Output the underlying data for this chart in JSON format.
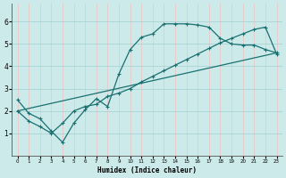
{
  "xlabel": "Humidex (Indice chaleur)",
  "bg_color": "#cceaea",
  "grid_color_v": "#e8c8c8",
  "grid_color_h": "#aad4d4",
  "line_color": "#1a7070",
  "xlim": [
    -0.5,
    23.5
  ],
  "ylim": [
    0,
    6.8
  ],
  "xticks": [
    0,
    1,
    2,
    3,
    4,
    5,
    6,
    7,
    8,
    9,
    10,
    11,
    12,
    13,
    14,
    15,
    16,
    17,
    18,
    19,
    20,
    21,
    22,
    23
  ],
  "yticks": [
    1,
    2,
    3,
    4,
    5,
    6
  ],
  "line1_x": [
    0,
    1,
    2,
    3,
    4,
    5,
    6,
    7,
    8,
    9,
    10,
    11,
    12,
    13,
    14,
    15,
    16,
    17,
    18,
    19,
    20,
    21,
    22,
    23
  ],
  "line1_y": [
    2.5,
    1.9,
    1.65,
    1.1,
    0.6,
    1.45,
    2.05,
    2.55,
    2.2,
    3.65,
    4.75,
    5.3,
    5.45,
    5.9,
    5.9,
    5.9,
    5.85,
    5.75,
    5.25,
    5.0,
    4.95,
    4.95,
    4.75,
    4.6
  ],
  "line2_x": [
    0,
    1,
    2,
    3,
    4,
    5,
    6,
    7,
    8,
    9,
    10,
    11,
    12,
    13,
    14,
    15,
    16,
    17,
    18,
    19,
    20,
    21,
    22,
    23
  ],
  "line2_y": [
    2.0,
    1.55,
    1.3,
    1.0,
    1.45,
    2.0,
    2.2,
    2.3,
    2.65,
    2.8,
    3.0,
    3.3,
    3.55,
    3.8,
    4.05,
    4.3,
    4.55,
    4.8,
    5.05,
    5.25,
    5.45,
    5.65,
    5.75,
    4.55
  ],
  "line3_x": [
    0,
    23
  ],
  "line3_y": [
    2.0,
    4.6
  ]
}
